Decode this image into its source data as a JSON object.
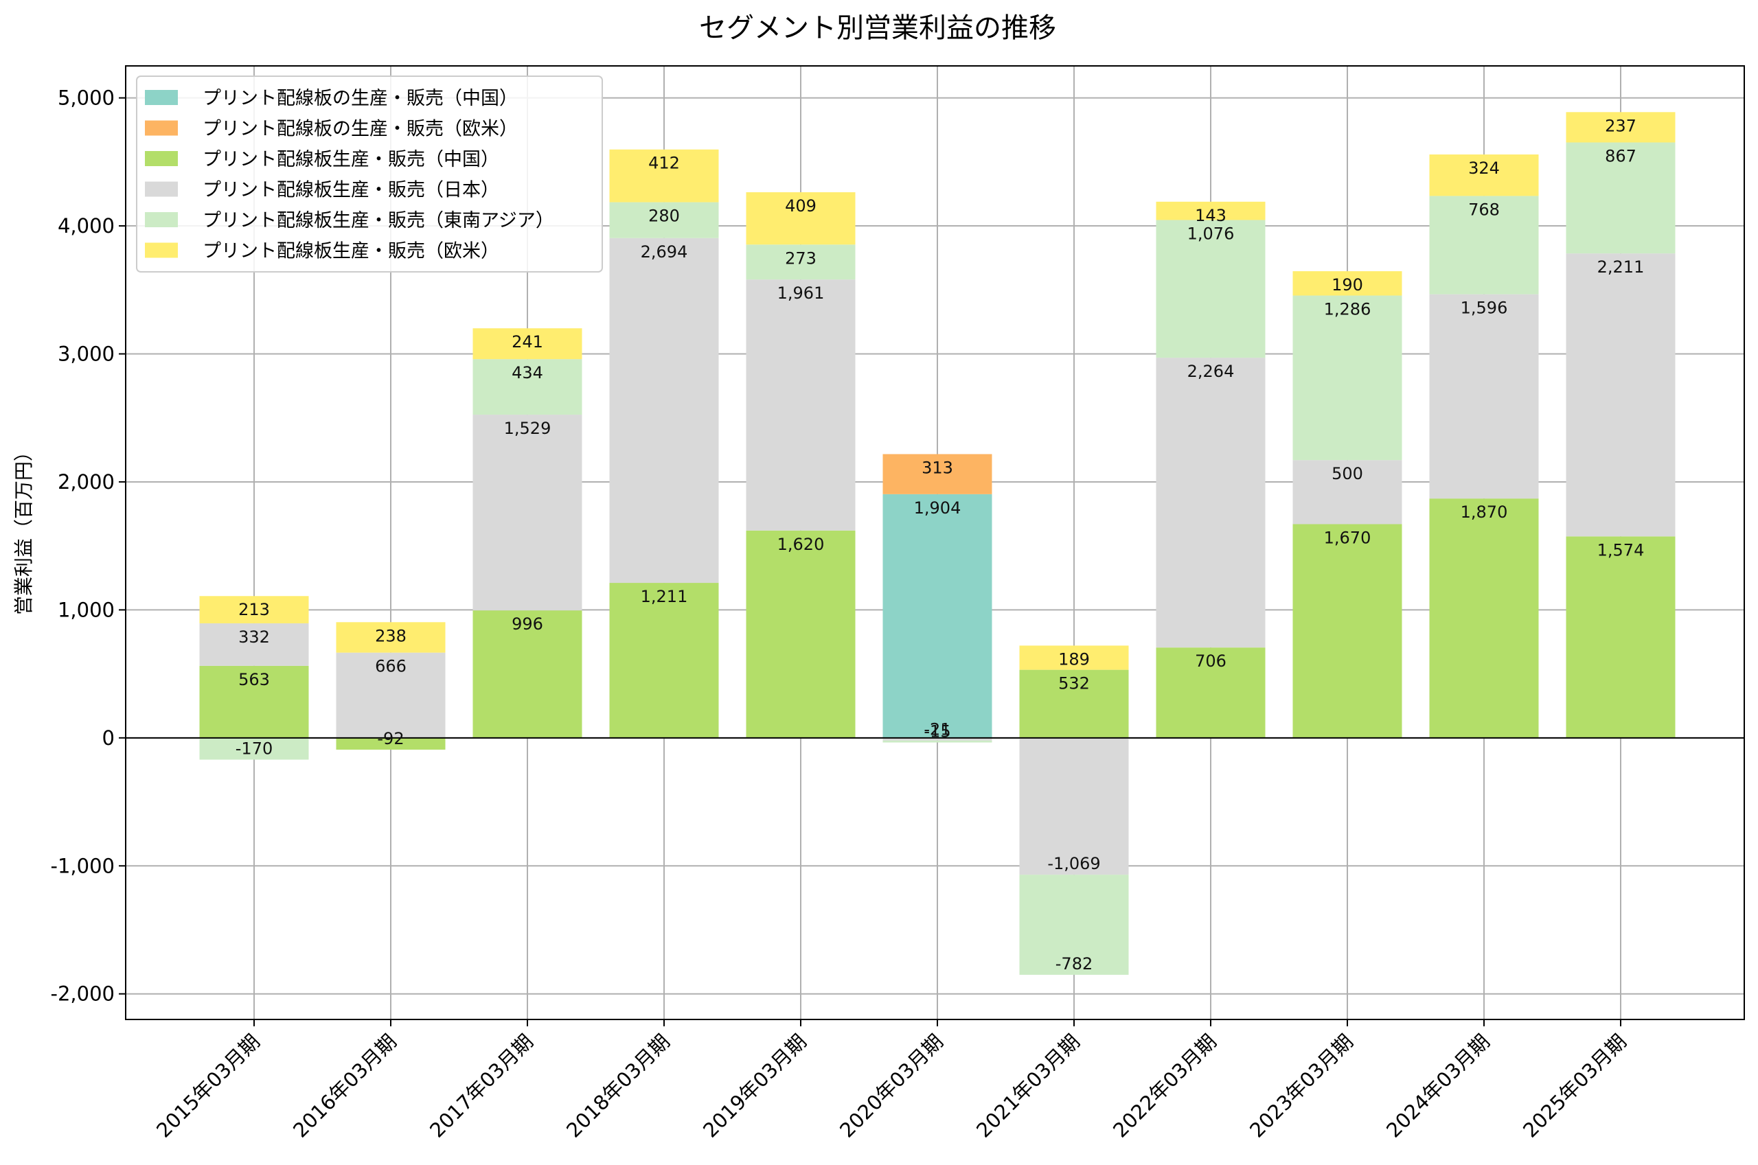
{
  "chart_data": {
    "type": "bar",
    "stacked": true,
    "title": "セグメント別営業利益の推移",
    "xlabel": "",
    "ylabel": "営業利益（百万円）",
    "ylim": [
      -2200,
      5250
    ],
    "yticks": [
      -2000,
      -1000,
      0,
      1000,
      2000,
      3000,
      4000,
      5000
    ],
    "ytick_labels": [
      "-2,000",
      "-1,000",
      "0",
      "1,000",
      "2,000",
      "3,000",
      "4,000",
      "5,000"
    ],
    "grid": true,
    "legend_position": "top-left",
    "categories": [
      "2015年03月期",
      "2016年03月期",
      "2017年03月期",
      "2018年03月期",
      "2019年03月期",
      "2020年03月期",
      "2021年03月期",
      "2022年03月期",
      "2023年03月期",
      "2024年03月期",
      "2025年03月期"
    ],
    "series": [
      {
        "name": "プリント配線板の生産・販売（中国）",
        "color": "#8dd3c7",
        "values": [
          null,
          null,
          null,
          null,
          null,
          1904,
          null,
          null,
          null,
          null,
          null
        ],
        "labels": [
          "",
          "",
          "",
          "",
          "",
          "1,904",
          "",
          "",
          "",
          "",
          ""
        ]
      },
      {
        "name": "プリント配線板の生産・販売（欧米）",
        "color": "#fdb462",
        "values": [
          null,
          null,
          null,
          null,
          null,
          313,
          null,
          null,
          null,
          null,
          null
        ],
        "labels": [
          "",
          "",
          "",
          "",
          "",
          "313",
          "",
          "",
          "",
          "",
          ""
        ]
      },
      {
        "name": "プリント配線板生産・販売（中国）",
        "color": "#b3de69",
        "values": [
          563,
          -92,
          996,
          1211,
          1620,
          null,
          532,
          706,
          1670,
          1870,
          1574
        ],
        "labels": [
          "563",
          "-92",
          "996",
          "1,211",
          "1,620",
          "",
          "532",
          "706",
          "1,670",
          "1,870",
          "1,574"
        ]
      },
      {
        "name": "プリント配線板生産・販売（日本）",
        "color": "#d9d9d9",
        "values": [
          332,
          666,
          1529,
          2694,
          1961,
          -21,
          -1069,
          2264,
          500,
          1596,
          2211
        ],
        "labels": [
          "332",
          "666",
          "1,529",
          "2,694",
          "1,961",
          "-21",
          "-1,069",
          "2,264",
          "500",
          "1,596",
          "2,211"
        ]
      },
      {
        "name": "プリント配線板生産・販売（東南アジア）",
        "color": "#ccebc5",
        "values": [
          -170,
          null,
          434,
          280,
          273,
          -15,
          -782,
          1076,
          1286,
          768,
          867
        ],
        "labels": [
          "-170",
          "",
          "434",
          "280",
          "273",
          "-15",
          "-782",
          "1,076",
          "1,286",
          "768",
          "867"
        ]
      },
      {
        "name": "プリント配線板生産・販売（欧米）",
        "color": "#ffed6f",
        "values": [
          213,
          238,
          241,
          412,
          409,
          null,
          189,
          143,
          190,
          324,
          237
        ],
        "labels": [
          "213",
          "238",
          "241",
          "412",
          "409",
          "",
          "189",
          "143",
          "190",
          "324",
          "237"
        ]
      }
    ]
  }
}
